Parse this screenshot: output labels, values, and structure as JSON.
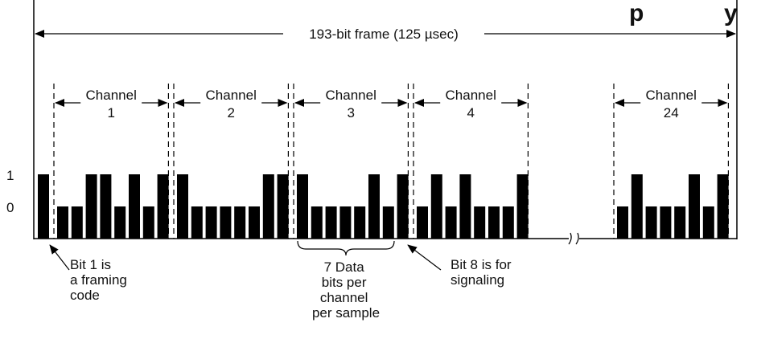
{
  "header": {
    "title_fragment": "p",
    "title_fragment_right": "y",
    "title_color": "#ee1111"
  },
  "frame": {
    "label": "193-bit frame  (125 µsec)"
  },
  "levels": {
    "high": "1",
    "low": "0"
  },
  "channels": [
    {
      "line1": "Channel",
      "line2": "1",
      "bits": [
        0,
        0,
        1,
        1,
        0,
        1,
        0,
        1
      ]
    },
    {
      "line1": "Channel",
      "line2": "2",
      "bits": [
        1,
        0,
        0,
        0,
        0,
        0,
        1,
        1
      ]
    },
    {
      "line1": "Channel",
      "line2": "3",
      "bits": [
        1,
        0,
        0,
        0,
        0,
        1,
        0,
        1
      ]
    },
    {
      "line1": "Channel",
      "line2": "4",
      "bits": [
        0,
        1,
        0,
        1,
        0,
        0,
        0,
        1
      ]
    },
    {
      "line1": "Channel",
      "line2": "24",
      "bits": [
        0,
        1,
        0,
        0,
        0,
        1,
        0,
        1
      ]
    }
  ],
  "framing_bit": 1,
  "annotations": {
    "framing": [
      "Bit 1 is",
      "a framing",
      "code"
    ],
    "data_bits": [
      "7 Data",
      "bits per",
      "channel",
      "per sample"
    ],
    "signaling": [
      "Bit 8 is for",
      "signaling"
    ]
  },
  "colors": {
    "ink": "#000000"
  }
}
